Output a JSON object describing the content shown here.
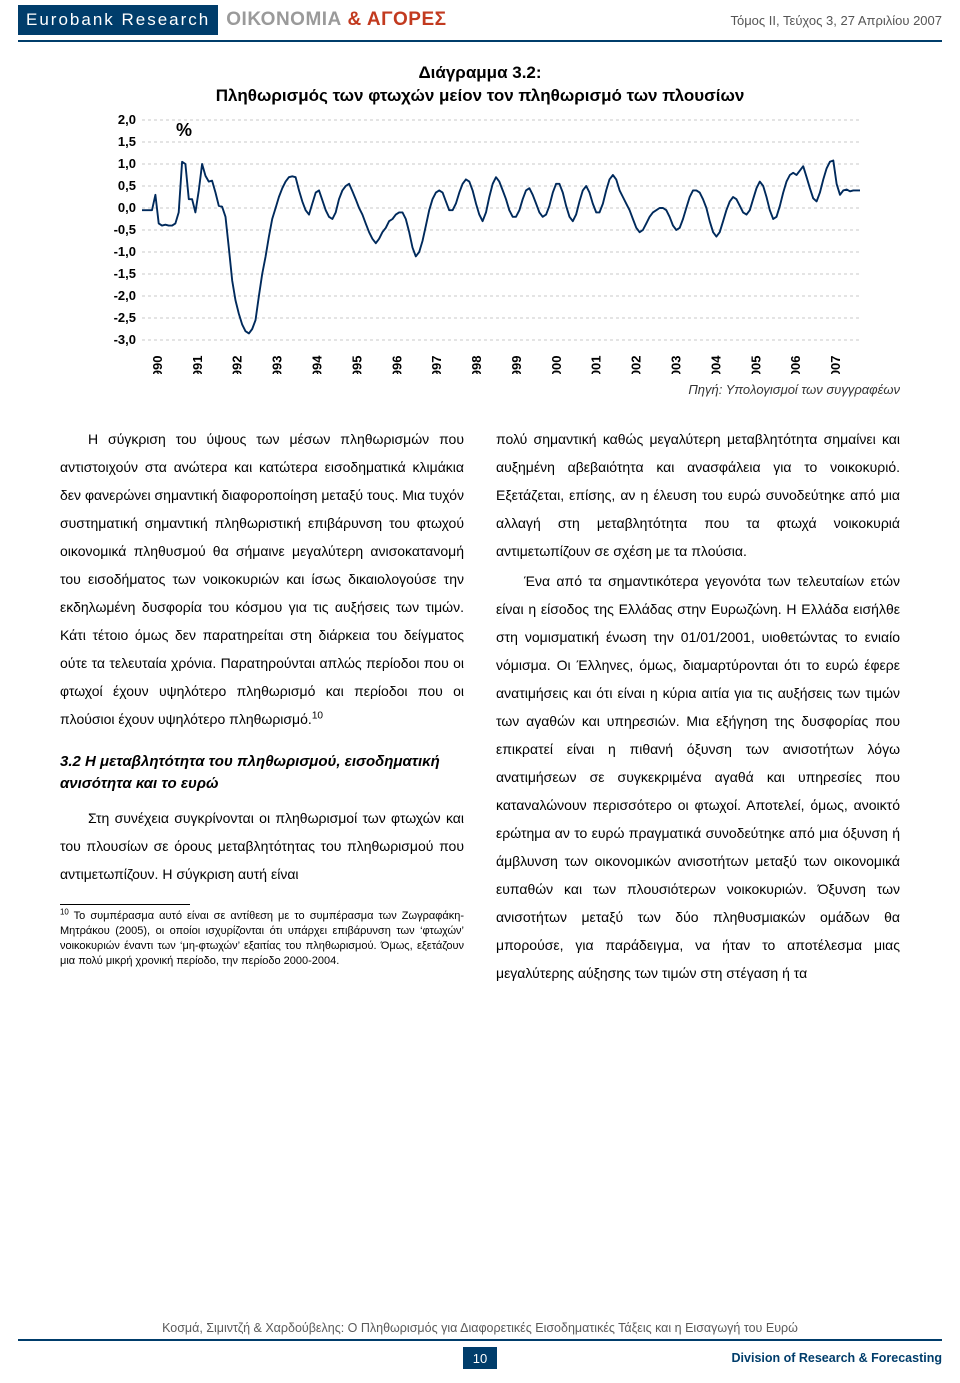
{
  "header": {
    "brand": "Eurobank Research",
    "greek1": "ΟΙΚΟΝΟΜΙΑ",
    "amp": " & ",
    "greek2": "ΑΓΟΡΕΣ",
    "issue": "Τόμος ΙΙ, Τεύχος 3, 27 Απριλίου 2007"
  },
  "chart": {
    "title_line1": "Διάγραμμα 3.2:",
    "title_line2": "Πληθωρισμός των φτωχών μείον τον πληθωρισμό των πλουσίων",
    "unit": "%",
    "type": "line",
    "y_ticks": [
      "2,0",
      "1,5",
      "1,0",
      "0,5",
      "0,0",
      "-0,5",
      "-1,0",
      "-1,5",
      "-2,0",
      "-2,5",
      "-3,0"
    ],
    "y_min": -3.0,
    "y_max": 2.0,
    "x_labels": [
      "1990",
      "1991",
      "1992",
      "1993",
      "1994",
      "1995",
      "1996",
      "1997",
      "1998",
      "1999",
      "2000",
      "2001",
      "2002",
      "2003",
      "2004",
      "2005",
      "2006",
      "2007"
    ],
    "series_color": "#002a5c",
    "line_width": 1.9,
    "grid_color": "#c8c8c8",
    "grid_dash": "3,3",
    "background_color": "#ffffff",
    "axis_color": "#000000",
    "tick_fontsize": 13,
    "tick_fontweight": 700,
    "values": [
      -0.05,
      -0.05,
      -0.05,
      -0.05,
      0.3,
      -0.35,
      -0.4,
      -0.38,
      -0.4,
      -0.4,
      -0.35,
      -0.1,
      1.05,
      1.0,
      0.2,
      0.2,
      -0.1,
      0.4,
      1.0,
      0.73,
      0.6,
      0.62,
      0.35,
      0.05,
      0.03,
      -0.2,
      -0.9,
      -1.65,
      -2.1,
      -2.4,
      -2.65,
      -2.8,
      -2.85,
      -2.75,
      -2.55,
      -2.0,
      -1.5,
      -1.1,
      -0.65,
      -0.25,
      0.0,
      0.25,
      0.45,
      0.6,
      0.7,
      0.72,
      0.7,
      0.4,
      0.15,
      -0.05,
      -0.15,
      0.1,
      0.35,
      0.4,
      0.18,
      -0.05,
      -0.2,
      -0.25,
      -0.1,
      0.2,
      0.4,
      0.5,
      0.55,
      0.38,
      0.2,
      0.0,
      -0.15,
      -0.35,
      -0.55,
      -0.7,
      -0.8,
      -0.7,
      -0.55,
      -0.45,
      -0.3,
      -0.25,
      -0.15,
      -0.1,
      -0.1,
      -0.25,
      -0.55,
      -0.9,
      -1.1,
      -1.0,
      -0.75,
      -0.4,
      -0.05,
      0.2,
      0.35,
      0.4,
      0.35,
      0.15,
      -0.05,
      -0.05,
      0.1,
      0.35,
      0.55,
      0.65,
      0.6,
      0.4,
      0.1,
      -0.15,
      -0.3,
      -0.1,
      0.25,
      0.55,
      0.7,
      0.6,
      0.4,
      0.2,
      -0.05,
      -0.2,
      -0.2,
      -0.05,
      0.2,
      0.4,
      0.45,
      0.3,
      0.1,
      -0.1,
      -0.2,
      -0.15,
      0.05,
      0.35,
      0.55,
      0.55,
      0.35,
      0.05,
      -0.2,
      -0.3,
      -0.15,
      0.15,
      0.4,
      0.5,
      0.35,
      0.1,
      -0.1,
      -0.1,
      0.1,
      0.4,
      0.65,
      0.75,
      0.65,
      0.4,
      0.25,
      0.1,
      -0.05,
      -0.25,
      -0.45,
      -0.55,
      -0.5,
      -0.35,
      -0.2,
      -0.1,
      -0.05,
      0.0,
      0.0,
      -0.05,
      -0.2,
      -0.4,
      -0.5,
      -0.45,
      -0.25,
      0.0,
      0.25,
      0.4,
      0.4,
      0.35,
      0.2,
      0.0,
      -0.3,
      -0.55,
      -0.65,
      -0.55,
      -0.3,
      -0.05,
      0.15,
      0.25,
      0.2,
      0.05,
      -0.1,
      -0.15,
      -0.05,
      0.2,
      0.45,
      0.6,
      0.5,
      0.25,
      -0.05,
      -0.25,
      -0.2,
      0.05,
      0.35,
      0.6,
      0.75,
      0.8,
      0.75,
      0.85,
      0.95,
      0.7,
      0.45,
      0.22,
      0.15,
      0.35,
      0.65,
      0.9,
      1.05,
      1.08,
      0.55,
      0.3,
      0.4,
      0.42,
      0.38,
      0.4,
      0.4,
      0.4
    ],
    "source": "Πηγή: Υπολογισμοί των συγγραφέων"
  },
  "body": {
    "left_p1": "Η σύγκριση του ύψους των μέσων πληθωρισμών που αντιστοιχούν στα ανώτερα και κατώτερα εισοδηματικά κλιμάκια δεν φανερώνει σημαντική διαφοροποίηση μεταξύ τους. Μια τυχόν συστηματική σημαντική πληθωριστική επιβάρυνση του φτωχού οικονομικά πληθυσμού θα σήμαινε μεγαλύτερη ανισοκατανομή του εισοδήματος των νοικοκυριών και ίσως δικαιολογούσε την εκδηλωμένη δυσφορία του κόσμου για τις αυξήσεις των τιμών. Κάτι τέτοιο όμως δεν παρατηρείται στη διάρκεια του δείγματος ούτε τα τελευταία χρόνια. Παρατηρούνται απλώς περίοδοι που οι φτωχοί έχουν υψηλότερο πληθωρισμό και περίοδοι που οι πλούσιοι έχουν υψηλότερο πληθωρισμό.",
    "left_p1_sup": "10",
    "section_heading": "3.2 Η μεταβλητότητα του πληθωρισμού, εισοδηματική ανισότητα και το ευρώ",
    "left_p2": "Στη συνέχεια συγκρίνονται οι πληθωρισμοί των φτωχών και του πλουσίων σε όρους μεταβλητότητας του πληθωρισμού που αντιμετωπίζουν. Η σύγκριση αυτή είναι",
    "footnote_num": "10",
    "footnote": " Το συμπέρασμα αυτό είναι σε αντίθεση με το συμπέρασμα των Ζωγραφάκη-Μητράκου (2005), οι οποίοι ισχυρίζονται ότι υπάρχει επιβάρυνση των ‘φτωχών’ νοικοκυριών έναντι των ‘μη-φτωχών’ εξαιτίας του πληθωρισμού. Όμως, εξετάζουν μια πολύ μικρή χρονική περίοδο, την περίοδο 2000-2004.",
    "right_p1": "πολύ σημαντική καθώς μεγαλύτερη μεταβλητότητα σημαίνει και αυξημένη αβεβαιότητα και ανασφάλεια για το νοικοκυριό. Εξετάζεται, επίσης, αν η έλευση του ευρώ συνοδεύτηκε από μια αλλαγή στη μεταβλητότητα που τα φτωχά νοικοκυριά αντιμετωπίζουν σε σχέση με τα πλούσια.",
    "right_p2": "Ένα από τα σημαντικότερα γεγονότα των τελευταίων ετών είναι η είσοδος της Ελλάδας στην Ευρωζώνη. Η Ελλάδα εισήλθε στη νομισματική ένωση την 01/01/2001, υιοθετώντας το ενιαίο νόμισμα. Οι Έλληνες, όμως, διαμαρτύρονται ότι το ευρώ έφερε ανατιμήσεις και ότι είναι η κύρια αιτία για τις αυξήσεις των τιμών των αγαθών και υπηρεσιών. Μια εξήγηση της δυσφορίας που επικρατεί είναι η πιθανή όξυνση των ανισοτήτων λόγω ανατιμήσεων σε συγκεκριμένα αγαθά και υπηρεσίες που καταναλώνουν περισσότερο οι φτωχοί. Αποτελεί, όμως, ανοικτό ερώτημα αν το ευρώ πραγματικά συνοδεύτηκε από μια όξυνση ή άμβλυνση των οικονομικών ανισοτήτων μεταξύ των οικονομικά ευπαθών και των πλουσιότερων νοικοκυριών. Όξυνση των ανισοτήτων μεταξύ των δύο πληθυσμιακών ομάδων θα μπορούσε, για παράδειγμα, να ήταν το αποτέλεσμα μιας μεγαλύτερης αύξησης των τιμών στη στέγαση ή τα"
  },
  "footer": {
    "authors": "Κοσμά, Σιμιντζή & Χαρδούβελης: Ο Πληθωρισμός για Διαφορετικές Εισοδηματικές Τάξεις και η Εισαγωγή του Ευρώ",
    "page": "10",
    "division": "Division of Research & Forecasting"
  }
}
